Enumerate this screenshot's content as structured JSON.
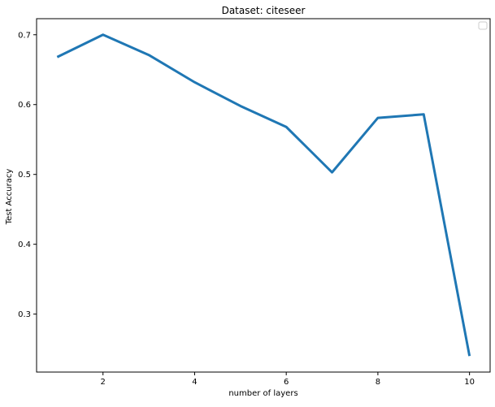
{
  "chart_data": {
    "type": "line",
    "title": "Dataset: citeseer",
    "xlabel": "number of layers",
    "ylabel": "Test Accuracy",
    "xlim": [
      0.55,
      10.45
    ],
    "ylim": [
      0.217,
      0.723
    ],
    "xticks": [
      2,
      4,
      6,
      8,
      10
    ],
    "yticks": [
      0.3,
      0.4,
      0.5,
      0.6,
      0.7
    ],
    "grid": false,
    "legend": {
      "position": "top-right",
      "entries": []
    },
    "series": [
      {
        "name": "",
        "color": "#1f77b4",
        "x": [
          1,
          2,
          3,
          4,
          5,
          6,
          7,
          8,
          9,
          10
        ],
        "y": [
          0.668,
          0.7,
          0.671,
          0.632,
          0.598,
          0.568,
          0.503,
          0.581,
          0.586,
          0.24
        ]
      }
    ]
  }
}
